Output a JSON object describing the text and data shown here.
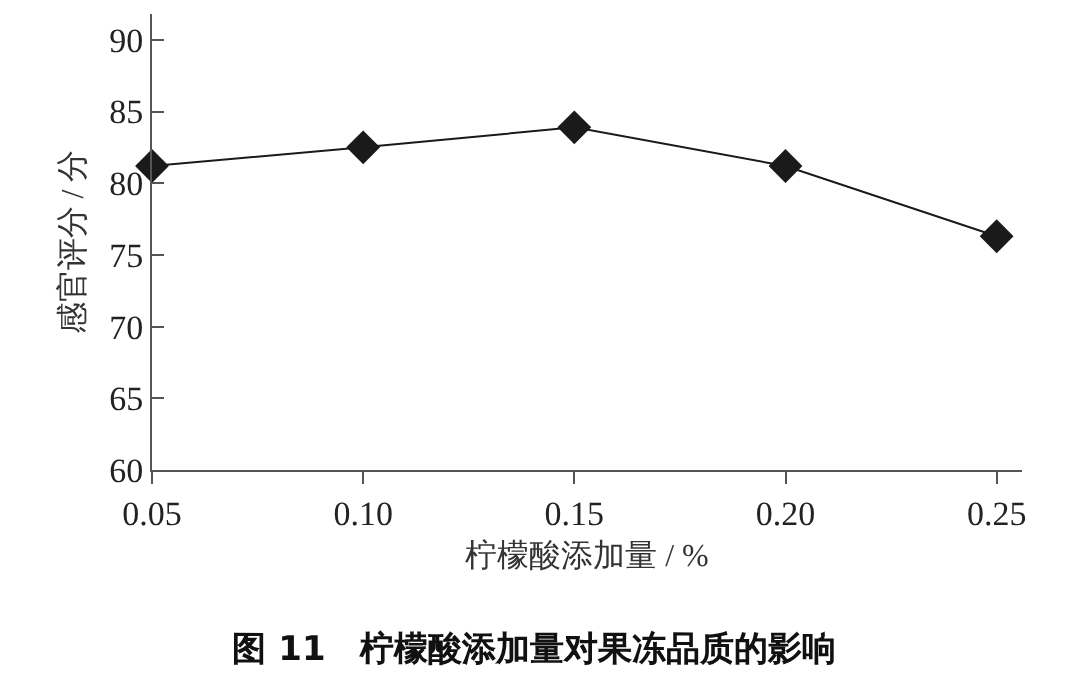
{
  "chart_data": {
    "type": "line",
    "title": "图 11　柠檬酸添加量对果冻品质的影响",
    "xlabel": "柠檬酸添加量 / %",
    "ylabel": "感官评分 / 分",
    "x": [
      0.05,
      0.1,
      0.15,
      0.2,
      0.25
    ],
    "series": [
      {
        "color": "#1a1a1a",
        "values": [
          81.2,
          82.5,
          83.9,
          81.2,
          76.3
        ]
      }
    ],
    "xlim": [
      0.05,
      0.256
    ],
    "xticks": [
      {
        "value": 0.05,
        "label": "0.05"
      },
      {
        "value": 0.1,
        "label": "0.10"
      },
      {
        "value": 0.15,
        "label": "0.15"
      },
      {
        "value": 0.2,
        "label": "0.20"
      },
      {
        "value": 0.25,
        "label": "0.25"
      }
    ],
    "ylim": [
      60,
      91.8
    ],
    "yticks": [
      60,
      65,
      70,
      75,
      80,
      85,
      90
    ],
    "marker": "diamond",
    "line_style": "solid",
    "legend": false
  }
}
